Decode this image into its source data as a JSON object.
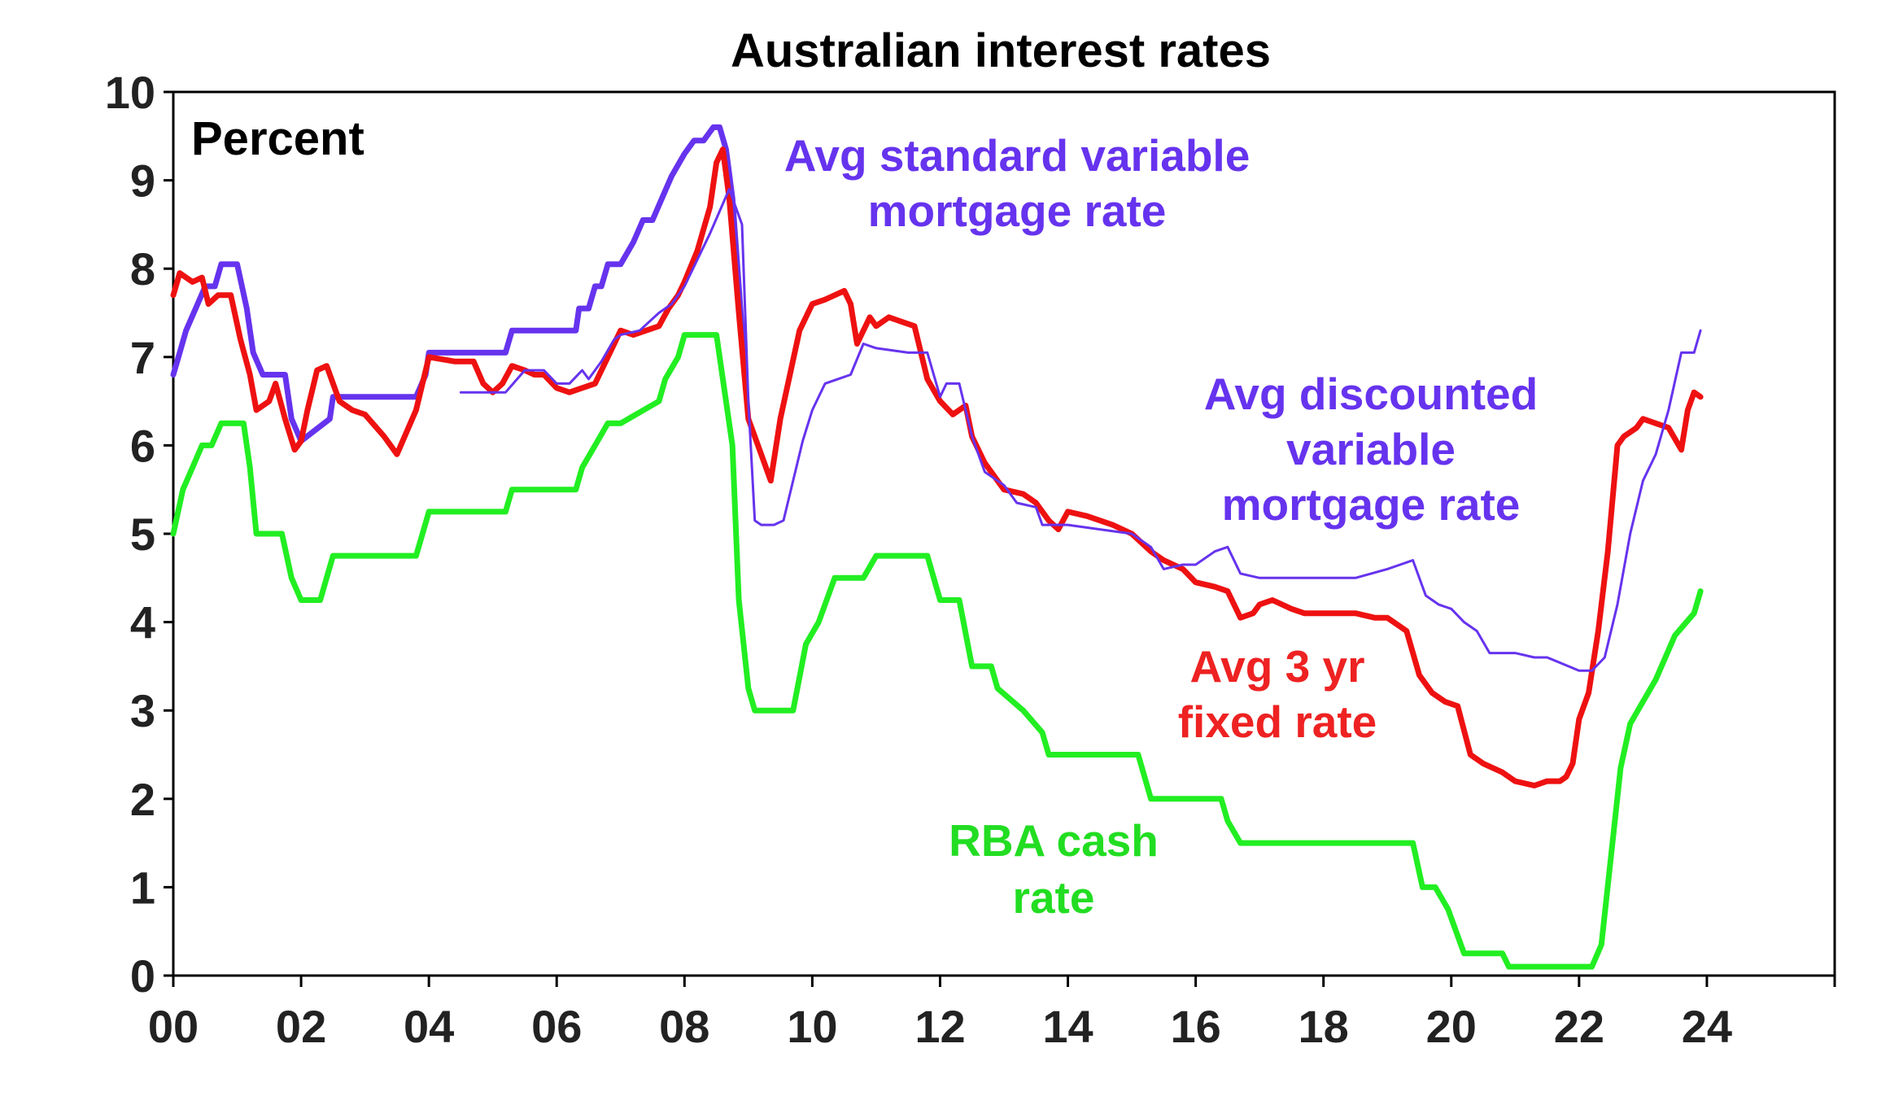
{
  "chart_data": {
    "type": "line",
    "title": "Australian interest rates",
    "unit_label": "Percent",
    "xlabel": "",
    "ylabel": "",
    "xlim": [
      2000,
      2026
    ],
    "ylim": [
      0,
      10
    ],
    "x_tick_values": [
      2000,
      2002,
      2004,
      2006,
      2008,
      2010,
      2012,
      2014,
      2016,
      2018,
      2020,
      2022,
      2024
    ],
    "x_tick_labels": [
      "00",
      "02",
      "04",
      "06",
      "08",
      "10",
      "12",
      "14",
      "16",
      "18",
      "20",
      "22",
      "24"
    ],
    "extra_x_ticks": [
      2026
    ],
    "y_ticks": [
      0,
      1,
      2,
      3,
      4,
      5,
      6,
      7,
      8,
      9,
      10
    ],
    "grid": false,
    "legend": "inline labels",
    "series": [
      {
        "name": "Avg standard variable mortgage rate",
        "label_lines": [
          "Avg standard variable",
          "mortgage rate"
        ],
        "label_color": "#6633ee",
        "color": "#6633ee",
        "width": 7,
        "x": [
          2000.0,
          2000.1,
          2000.2,
          2000.35,
          2000.5,
          2000.65,
          2000.75,
          2001.0,
          2001.15,
          2001.25,
          2001.4,
          2001.75,
          2001.85,
          2002.0,
          2002.45,
          2002.5,
          2003.8,
          2003.95,
          2004.0,
          2005.2,
          2005.3,
          2006.3,
          2006.35,
          2006.5,
          2006.6,
          2006.7,
          2006.8,
          2006.9,
          2007.0,
          2007.2,
          2007.35,
          2007.5,
          2007.65,
          2007.8,
          2008.0,
          2008.15,
          2008.3,
          2008.45,
          2008.55,
          2008.65,
          2008.75,
          2008.85,
          2008.95
        ],
        "y": [
          6.8,
          7.05,
          7.3,
          7.55,
          7.8,
          7.8,
          8.05,
          8.05,
          7.55,
          7.05,
          6.8,
          6.8,
          6.3,
          6.05,
          6.3,
          6.55,
          6.55,
          6.8,
          7.05,
          7.05,
          7.3,
          7.3,
          7.55,
          7.55,
          7.8,
          7.8,
          8.05,
          8.05,
          8.05,
          8.3,
          8.55,
          8.55,
          8.8,
          9.05,
          9.3,
          9.45,
          9.45,
          9.6,
          9.6,
          9.35,
          8.8,
          7.8,
          6.8
        ]
      },
      {
        "name": "Avg discounted variable mortgage rate",
        "label_lines": [
          "Avg discounted",
          "variable",
          "mortgage rate"
        ],
        "label_color": "#6633ee",
        "color": "#6633ee",
        "width": 3,
        "x": [
          2004.5,
          2005.0,
          2005.2,
          2005.5,
          2005.8,
          2006.0,
          2006.2,
          2006.4,
          2006.5,
          2006.7,
          2006.9,
          2007.0,
          2007.3,
          2007.6,
          2007.8,
          2008.0,
          2008.2,
          2008.4,
          2008.55,
          2008.7,
          2008.9,
          2009.0,
          2009.1,
          2009.2,
          2009.4,
          2009.55,
          2009.7,
          2009.85,
          2010.0,
          2010.2,
          2010.4,
          2010.6,
          2010.8,
          2011.0,
          2011.5,
          2011.8,
          2012.0,
          2012.1,
          2012.3,
          2012.5,
          2012.7,
          2013.0,
          2013.2,
          2013.5,
          2013.6,
          2014.0,
          2014.5,
          2015.0,
          2015.3,
          2015.5,
          2015.8,
          2016.0,
          2016.3,
          2016.5,
          2016.7,
          2017.0,
          2017.3,
          2017.5,
          2017.8,
          2018.0,
          2018.5,
          2019.0,
          2019.2,
          2019.4,
          2019.6,
          2019.8,
          2020.0,
          2020.2,
          2020.4,
          2020.6,
          2021.0,
          2021.3,
          2021.5,
          2022.0,
          2022.2,
          2022.4,
          2022.6,
          2022.8,
          2023.0,
          2023.2,
          2023.4,
          2023.6,
          2023.8,
          2023.9
        ],
        "y": [
          6.6,
          6.6,
          6.6,
          6.85,
          6.85,
          6.7,
          6.7,
          6.85,
          6.75,
          6.95,
          7.2,
          7.25,
          7.3,
          7.5,
          7.6,
          7.8,
          8.1,
          8.4,
          8.65,
          8.9,
          8.5,
          6.5,
          5.15,
          5.1,
          5.1,
          5.15,
          5.6,
          6.05,
          6.4,
          6.7,
          6.75,
          6.8,
          7.15,
          7.1,
          7.05,
          7.05,
          6.55,
          6.7,
          6.7,
          6.1,
          5.7,
          5.55,
          5.35,
          5.3,
          5.1,
          5.1,
          5.05,
          5.0,
          4.85,
          4.6,
          4.65,
          4.65,
          4.8,
          4.85,
          4.55,
          4.5,
          4.5,
          4.5,
          4.5,
          4.5,
          4.5,
          4.6,
          4.65,
          4.7,
          4.3,
          4.2,
          4.15,
          4.0,
          3.9,
          3.65,
          3.65,
          3.6,
          3.6,
          3.45,
          3.45,
          3.6,
          4.2,
          5.0,
          5.6,
          5.9,
          6.4,
          7.05,
          7.05,
          7.3
        ]
      },
      {
        "name": "Avg 3 yr fixed rate",
        "label_lines": [
          "Avg 3 yr",
          "fixed rate"
        ],
        "label_color": "#ee2222",
        "color": "#ee1111",
        "width": 7,
        "x": [
          2000.0,
          2000.1,
          2000.3,
          2000.45,
          2000.55,
          2000.7,
          2000.9,
          2001.05,
          2001.2,
          2001.3,
          2001.5,
          2001.6,
          2001.75,
          2001.9,
          2002.0,
          2002.1,
          2002.25,
          2002.4,
          2002.6,
          2002.8,
          2003.0,
          2003.3,
          2003.5,
          2003.8,
          2004.0,
          2004.4,
          2004.7,
          2004.85,
          2005.0,
          2005.15,
          2005.3,
          2005.5,
          2005.65,
          2005.8,
          2006.0,
          2006.2,
          2006.4,
          2006.6,
          2006.8,
          2007.0,
          2007.2,
          2007.4,
          2007.6,
          2007.75,
          2007.9,
          2008.0,
          2008.2,
          2008.4,
          2008.5,
          2008.6,
          2008.7,
          2008.85,
          2009.0,
          2009.2,
          2009.35,
          2009.5,
          2009.65,
          2009.8,
          2010.0,
          2010.2,
          2010.35,
          2010.5,
          2010.6,
          2010.7,
          2010.9,
          2011.0,
          2011.2,
          2011.4,
          2011.6,
          2011.8,
          2012.0,
          2012.2,
          2012.4,
          2012.5,
          2012.7,
          2012.9,
          2013.0,
          2013.3,
          2013.5,
          2013.7,
          2013.85,
          2014.0,
          2014.3,
          2014.5,
          2014.7,
          2015.0,
          2015.3,
          2015.5,
          2015.8,
          2016.0,
          2016.3,
          2016.5,
          2016.7,
          2016.9,
          2017.0,
          2017.2,
          2017.5,
          2017.7,
          2018.0,
          2018.5,
          2018.8,
          2019.0,
          2019.3,
          2019.5,
          2019.7,
          2019.9,
          2020.1,
          2020.3,
          2020.5,
          2020.8,
          2021.0,
          2021.3,
          2021.5,
          2021.7,
          2021.8,
          2021.9,
          2022.0,
          2022.15,
          2022.3,
          2022.45,
          2022.6,
          2022.7,
          2022.8,
          2022.9,
          2023.0,
          2023.2,
          2023.4,
          2023.6,
          2023.7,
          2023.8,
          2023.9
        ],
        "y": [
          7.7,
          7.95,
          7.85,
          7.9,
          7.6,
          7.7,
          7.7,
          7.2,
          6.8,
          6.4,
          6.5,
          6.7,
          6.3,
          5.95,
          6.05,
          6.4,
          6.85,
          6.9,
          6.5,
          6.4,
          6.35,
          6.1,
          5.9,
          6.4,
          7.0,
          6.95,
          6.95,
          6.7,
          6.6,
          6.7,
          6.9,
          6.85,
          6.8,
          6.8,
          6.65,
          6.6,
          6.65,
          6.7,
          7.0,
          7.3,
          7.25,
          7.3,
          7.35,
          7.55,
          7.7,
          7.85,
          8.2,
          8.7,
          9.2,
          9.35,
          8.8,
          7.5,
          6.3,
          5.9,
          5.6,
          6.3,
          6.8,
          7.3,
          7.6,
          7.65,
          7.7,
          7.75,
          7.6,
          7.15,
          7.45,
          7.35,
          7.45,
          7.4,
          7.35,
          6.75,
          6.5,
          6.35,
          6.45,
          6.1,
          5.8,
          5.6,
          5.5,
          5.45,
          5.35,
          5.15,
          5.05,
          5.25,
          5.2,
          5.15,
          5.1,
          5.0,
          4.8,
          4.7,
          4.6,
          4.45,
          4.4,
          4.35,
          4.05,
          4.1,
          4.2,
          4.25,
          4.15,
          4.1,
          4.1,
          4.1,
          4.05,
          4.05,
          3.9,
          3.4,
          3.2,
          3.1,
          3.05,
          2.5,
          2.4,
          2.3,
          2.2,
          2.15,
          2.2,
          2.2,
          2.25,
          2.4,
          2.9,
          3.2,
          3.9,
          4.8,
          6.0,
          6.1,
          6.15,
          6.2,
          6.3,
          6.25,
          6.2,
          5.95,
          6.4,
          6.6,
          6.55
        ],
        "line_style": "solid"
      },
      {
        "name": "RBA cash rate",
        "label_lines": [
          "RBA cash",
          "rate"
        ],
        "label_color": "#22dd22",
        "color": "#22ee22",
        "width": 7,
        "x": [
          2000.0,
          2000.15,
          2000.3,
          2000.45,
          2000.6,
          2000.75,
          2001.1,
          2001.2,
          2001.3,
          2001.7,
          2001.85,
          2002.0,
          2002.3,
          2002.5,
          2003.8,
          2004.0,
          2005.2,
          2005.3,
          2006.3,
          2006.4,
          2006.6,
          2006.8,
          2007.0,
          2007.6,
          2007.7,
          2007.9,
          2008.0,
          2008.2,
          2008.5,
          2008.75,
          2008.85,
          2009.0,
          2009.1,
          2009.25,
          2009.7,
          2009.9,
          2010.1,
          2010.35,
          2010.8,
          2011.0,
          2011.8,
          2012.0,
          2012.3,
          2012.5,
          2012.8,
          2012.9,
          2013.3,
          2013.6,
          2013.7,
          2015.1,
          2015.3,
          2016.0,
          2016.4,
          2016.5,
          2016.7,
          2019.4,
          2019.55,
          2019.75,
          2019.95,
          2020.2,
          2020.8,
          2020.9,
          2022.2,
          2022.35,
          2022.5,
          2022.65,
          2022.8,
          2023.0,
          2023.2,
          2023.5,
          2023.8,
          2023.9
        ],
        "y": [
          5.0,
          5.5,
          5.75,
          6.0,
          6.0,
          6.25,
          6.25,
          5.75,
          5.0,
          5.0,
          4.5,
          4.25,
          4.25,
          4.75,
          4.75,
          5.25,
          5.25,
          5.5,
          5.5,
          5.75,
          6.0,
          6.25,
          6.25,
          6.5,
          6.75,
          7.0,
          7.25,
          7.25,
          7.25,
          6.0,
          4.25,
          3.25,
          3.0,
          3.0,
          3.0,
          3.75,
          4.0,
          4.5,
          4.5,
          4.75,
          4.75,
          4.25,
          4.25,
          3.5,
          3.5,
          3.25,
          3.0,
          2.75,
          2.5,
          2.5,
          2.0,
          2.0,
          2.0,
          1.75,
          1.5,
          1.5,
          1.0,
          1.0,
          0.75,
          0.25,
          0.25,
          0.1,
          0.1,
          0.35,
          1.35,
          2.35,
          2.85,
          3.1,
          3.35,
          3.85,
          4.1,
          4.35
        ]
      }
    ]
  }
}
